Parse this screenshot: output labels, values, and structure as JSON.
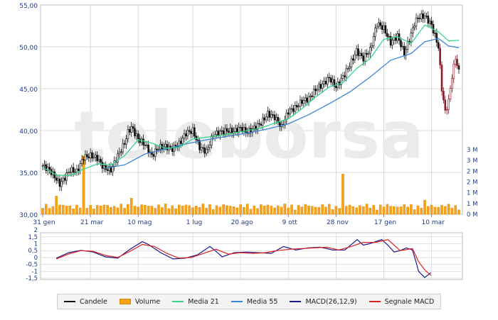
{
  "watermark": "teleborsa",
  "colors": {
    "candle": "#111111",
    "volume": "#f7a21b",
    "media21": "#34d68a",
    "media55": "#3b86d6",
    "macd": "#1a1a8c",
    "signal": "#e02020",
    "grid": "#d9d9d9"
  },
  "legend": [
    {
      "label": "Candele",
      "color": "#111111",
      "icon": "line-swatch"
    },
    {
      "label": "Volume",
      "color": "#f7a21b",
      "icon": "box-swatch"
    },
    {
      "label": "Media 21",
      "color": "#34d68a",
      "icon": "line-swatch"
    },
    {
      "label": "Media 55",
      "color": "#3b86d6",
      "icon": "line-swatch"
    },
    {
      "label": "MACD(26,12,9)",
      "color": "#1a1a8c",
      "icon": "line-swatch"
    },
    {
      "label": "Segnale MACD",
      "color": "#e02020",
      "icon": "line-swatch"
    }
  ],
  "chart_data": [
    {
      "type": "candlestick",
      "ylim": [
        30,
        55
      ],
      "y_ticks": [
        "55,00",
        "50,00",
        "45,00",
        "40,00",
        "35,00",
        "30,00"
      ],
      "volume_ticks": [
        "3 M",
        "3 M",
        "2 M",
        "2 M",
        "1 M",
        "1 M",
        "0 M"
      ],
      "x_ticks": [
        "31 gen",
        "21 mar",
        "10 mag",
        "1 lug",
        "20 ago",
        "9 ott",
        "28 nov",
        "17 gen",
        "10 mar"
      ],
      "grid": true,
      "close_trace": [
        [
          0,
          35.8
        ],
        [
          2,
          35.3
        ],
        [
          4,
          34.2
        ],
        [
          5,
          33.6
        ],
        [
          6,
          34.1
        ],
        [
          8,
          35.3
        ],
        [
          10,
          35.1
        ],
        [
          12,
          36.8
        ],
        [
          14,
          37.0
        ],
        [
          16,
          36.7
        ],
        [
          18,
          35.5
        ],
        [
          20,
          35.3
        ],
        [
          22,
          37.0
        ],
        [
          24,
          38.5
        ],
        [
          25,
          39.8
        ],
        [
          26,
          40.4
        ],
        [
          28,
          39.0
        ],
        [
          30,
          38.3
        ],
        [
          32,
          37.0
        ],
        [
          34,
          38.0
        ],
        [
          36,
          38.1
        ],
        [
          38,
          37.8
        ],
        [
          40,
          38.4
        ],
        [
          42,
          39.7
        ],
        [
          44,
          40.0
        ],
        [
          46,
          38.0
        ],
        [
          48,
          37.5
        ],
        [
          50,
          39.5
        ],
        [
          52,
          39.8
        ],
        [
          54,
          40.0
        ],
        [
          56,
          39.9
        ],
        [
          58,
          40.3
        ],
        [
          60,
          39.8
        ],
        [
          62,
          40.3
        ],
        [
          64,
          40.9
        ],
        [
          66,
          42.0
        ],
        [
          68,
          41.6
        ],
        [
          70,
          40.4
        ],
        [
          72,
          42.3
        ],
        [
          74,
          42.7
        ],
        [
          76,
          43.5
        ],
        [
          78,
          43.8
        ],
        [
          80,
          44.9
        ],
        [
          82,
          45.5
        ],
        [
          84,
          46.3
        ],
        [
          86,
          45.2
        ],
        [
          88,
          46.4
        ],
        [
          90,
          47.8
        ],
        [
          92,
          49.5
        ],
        [
          94,
          48.6
        ],
        [
          95,
          49.2
        ],
        [
          96,
          49.6
        ],
        [
          98,
          52.8
        ],
        [
          100,
          52.2
        ],
        [
          102,
          50.5
        ],
        [
          104,
          51.3
        ],
        [
          106,
          49.2
        ],
        [
          108,
          51.5
        ],
        [
          109,
          52.8
        ],
        [
          110,
          53.5
        ],
        [
          112,
          53.7
        ],
        [
          114,
          52.6
        ],
        [
          116,
          50.0
        ],
        [
          117,
          45.0
        ],
        [
          118,
          42.2
        ],
        [
          119,
          43.5
        ],
        [
          120,
          46.5
        ],
        [
          121,
          48.7
        ],
        [
          122,
          47.0
        ]
      ],
      "volume_spikes": [
        [
          12,
          2.9
        ],
        [
          88,
          2.0
        ],
        [
          4,
          0.9
        ],
        [
          26,
          0.8
        ],
        [
          112,
          0.7
        ]
      ],
      "media21": [
        [
          0,
          35.6
        ],
        [
          4,
          34.7
        ],
        [
          8,
          34.6
        ],
        [
          12,
          35.4
        ],
        [
          16,
          36.0
        ],
        [
          20,
          35.9
        ],
        [
          24,
          37.0
        ],
        [
          28,
          38.9
        ],
        [
          32,
          38.5
        ],
        [
          36,
          37.9
        ],
        [
          40,
          38.0
        ],
        [
          44,
          39.0
        ],
        [
          48,
          39.2
        ],
        [
          52,
          39.4
        ],
        [
          56,
          39.7
        ],
        [
          60,
          40.0
        ],
        [
          64,
          40.3
        ],
        [
          68,
          40.9
        ],
        [
          72,
          41.4
        ],
        [
          76,
          42.6
        ],
        [
          80,
          44.0
        ],
        [
          84,
          45.2
        ],
        [
          88,
          45.7
        ],
        [
          92,
          47.4
        ],
        [
          96,
          48.6
        ],
        [
          100,
          50.9
        ],
        [
          104,
          51.2
        ],
        [
          108,
          50.4
        ],
        [
          112,
          52.6
        ],
        [
          116,
          51.8
        ],
        [
          119,
          50.7
        ],
        [
          122,
          50.8
        ]
      ],
      "media55": [
        [
          18,
          35.5
        ],
        [
          24,
          35.9
        ],
        [
          30,
          37.2
        ],
        [
          36,
          37.8
        ],
        [
          42,
          38.4
        ],
        [
          48,
          38.9
        ],
        [
          54,
          39.3
        ],
        [
          60,
          39.7
        ],
        [
          66,
          40.2
        ],
        [
          72,
          40.8
        ],
        [
          78,
          41.9
        ],
        [
          84,
          43.2
        ],
        [
          90,
          44.6
        ],
        [
          96,
          46.4
        ],
        [
          102,
          48.4
        ],
        [
          108,
          49.2
        ],
        [
          112,
          50.6
        ],
        [
          116,
          51.0
        ],
        [
          119,
          50.1
        ],
        [
          122,
          49.9
        ]
      ]
    },
    {
      "type": "line",
      "ylim": [
        -1.6,
        1.8
      ],
      "y_ticks": [
        "2",
        "1,5",
        "1",
        "0,5",
        "0",
        "-0,5",
        "-1",
        "-1,5"
      ],
      "series": [
        {
          "name": "MACD(26,12,9)",
          "points": [
            [
              0,
              -0.05
            ],
            [
              4,
              0.35
            ],
            [
              8,
              0.52
            ],
            [
              12,
              0.4
            ],
            [
              16,
              0.05
            ],
            [
              20,
              -0.05
            ],
            [
              24,
              0.6
            ],
            [
              28,
              1.15
            ],
            [
              30,
              0.95
            ],
            [
              34,
              0.35
            ],
            [
              38,
              -0.1
            ],
            [
              42,
              -0.05
            ],
            [
              46,
              0.2
            ],
            [
              50,
              0.8
            ],
            [
              52,
              0.45
            ],
            [
              54,
              0.05
            ],
            [
              58,
              0.35
            ],
            [
              62,
              0.4
            ],
            [
              66,
              0.35
            ],
            [
              70,
              0.3
            ],
            [
              74,
              0.8
            ],
            [
              78,
              0.55
            ],
            [
              82,
              0.7
            ],
            [
              86,
              0.75
            ],
            [
              90,
              0.55
            ],
            [
              94,
              0.55
            ],
            [
              98,
              1.3
            ],
            [
              100,
              0.9
            ],
            [
              102,
              1.0
            ],
            [
              106,
              1.3
            ],
            [
              108,
              0.9
            ],
            [
              110,
              0.4
            ],
            [
              112,
              0.5
            ],
            [
              114,
              0.7
            ],
            [
              116,
              0.55
            ],
            [
              117,
              -0.2
            ],
            [
              118,
              -1.0
            ],
            [
              120,
              -1.45
            ],
            [
              122,
              -1.1
            ]
          ]
        },
        {
          "name": "Segnale MACD",
          "points": [
            [
              0,
              -0.1
            ],
            [
              4,
              0.25
            ],
            [
              8,
              0.5
            ],
            [
              12,
              0.45
            ],
            [
              16,
              0.15
            ],
            [
              20,
              0.0
            ],
            [
              24,
              0.45
            ],
            [
              28,
              0.95
            ],
            [
              32,
              0.8
            ],
            [
              36,
              0.3
            ],
            [
              40,
              -0.05
            ],
            [
              44,
              0.0
            ],
            [
              48,
              0.3
            ],
            [
              52,
              0.6
            ],
            [
              56,
              0.25
            ],
            [
              60,
              0.35
            ],
            [
              64,
              0.3
            ],
            [
              68,
              0.35
            ],
            [
              72,
              0.5
            ],
            [
              76,
              0.6
            ],
            [
              80,
              0.65
            ],
            [
              84,
              0.7
            ],
            [
              88,
              0.75
            ],
            [
              92,
              0.55
            ],
            [
              96,
              0.8
            ],
            [
              100,
              1.1
            ],
            [
              104,
              1.1
            ],
            [
              108,
              1.3
            ],
            [
              112,
              0.5
            ],
            [
              116,
              0.65
            ],
            [
              118,
              -0.3
            ],
            [
              120,
              -0.9
            ],
            [
              122,
              -1.3
            ]
          ]
        }
      ]
    }
  ]
}
